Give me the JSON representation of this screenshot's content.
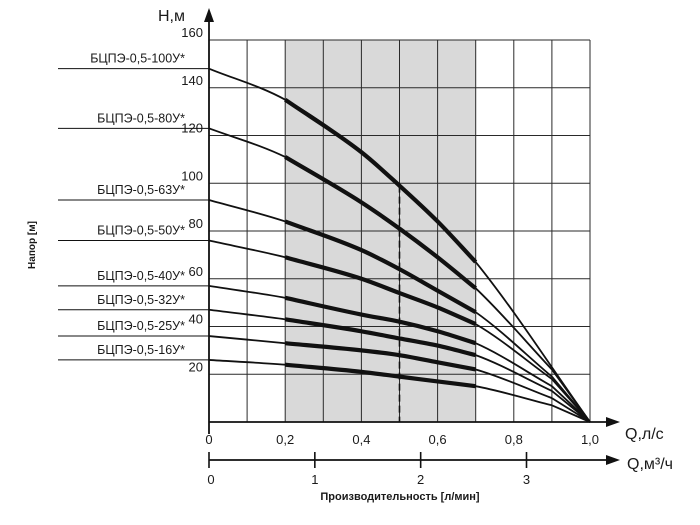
{
  "chart_data": {
    "type": "line",
    "title": "",
    "ylabel": "Напор [м]",
    "y_unit_label": "H,м",
    "xlabel": "Производительность [л/мин]",
    "x_unit_label": "Q,л/с",
    "x2_unit_label": "Q,м³/ч",
    "xlim": [
      0,
      1.0
    ],
    "ylim": [
      0,
      160
    ],
    "x_ticks": [
      "0",
      "0,2",
      "0,4",
      "0,6",
      "0,8",
      "1,0"
    ],
    "y_ticks": [
      "20",
      "40",
      "60",
      "80",
      "100",
      "120",
      "140",
      "160"
    ],
    "x2_ticks": [
      "0",
      "1",
      "2",
      "3"
    ],
    "grid": true,
    "working_range": [
      0.2,
      0.7
    ],
    "nominal_flow": 0.5,
    "series": [
      {
        "name": "БЦПЭ-0,5-100У*",
        "x": [
          0,
          0.2,
          0.4,
          0.5,
          0.6,
          0.7,
          1.0
        ],
        "y": [
          148,
          135,
          113,
          99,
          84,
          67,
          0
        ]
      },
      {
        "name": "БЦПЭ-0,5-80У*",
        "x": [
          0,
          0.2,
          0.4,
          0.5,
          0.6,
          0.7,
          0.9
        ],
        "y": [
          123,
          111,
          92,
          81,
          69,
          56,
          22
        ]
      },
      {
        "name": "БЦПЭ-0,5-63У*",
        "x": [
          0,
          0.2,
          0.4,
          0.5,
          0.6,
          0.7,
          0.9
        ],
        "y": [
          93,
          84,
          72,
          64,
          55,
          46,
          19
        ]
      },
      {
        "name": "БЦПЭ-0,5-50У*",
        "x": [
          0,
          0.2,
          0.4,
          0.5,
          0.6,
          0.7,
          0.9
        ],
        "y": [
          76,
          69,
          60,
          54,
          48,
          41,
          18
        ]
      },
      {
        "name": "БЦПЭ-0,5-40У*",
        "x": [
          0,
          0.2,
          0.4,
          0.5,
          0.6,
          0.7,
          0.9
        ],
        "y": [
          57,
          52,
          45,
          42,
          38,
          33,
          15
        ]
      },
      {
        "name": "БЦПЭ-0,5-32У*",
        "x": [
          0,
          0.2,
          0.4,
          0.5,
          0.6,
          0.7,
          0.9
        ],
        "y": [
          47,
          43,
          38,
          35,
          32,
          28,
          13
        ]
      },
      {
        "name": "БЦПЭ-0,5-25У*",
        "x": [
          0,
          0.2,
          0.4,
          0.5,
          0.6,
          0.7,
          0.9
        ],
        "y": [
          36,
          33,
          30,
          28,
          25,
          22,
          10
        ]
      },
      {
        "name": "БЦПЭ-0,5-16У*",
        "x": [
          0,
          0.2,
          0.4,
          0.5,
          0.6,
          0.7,
          0.9
        ],
        "y": [
          26,
          24,
          21,
          19,
          17,
          15,
          7
        ]
      }
    ]
  }
}
